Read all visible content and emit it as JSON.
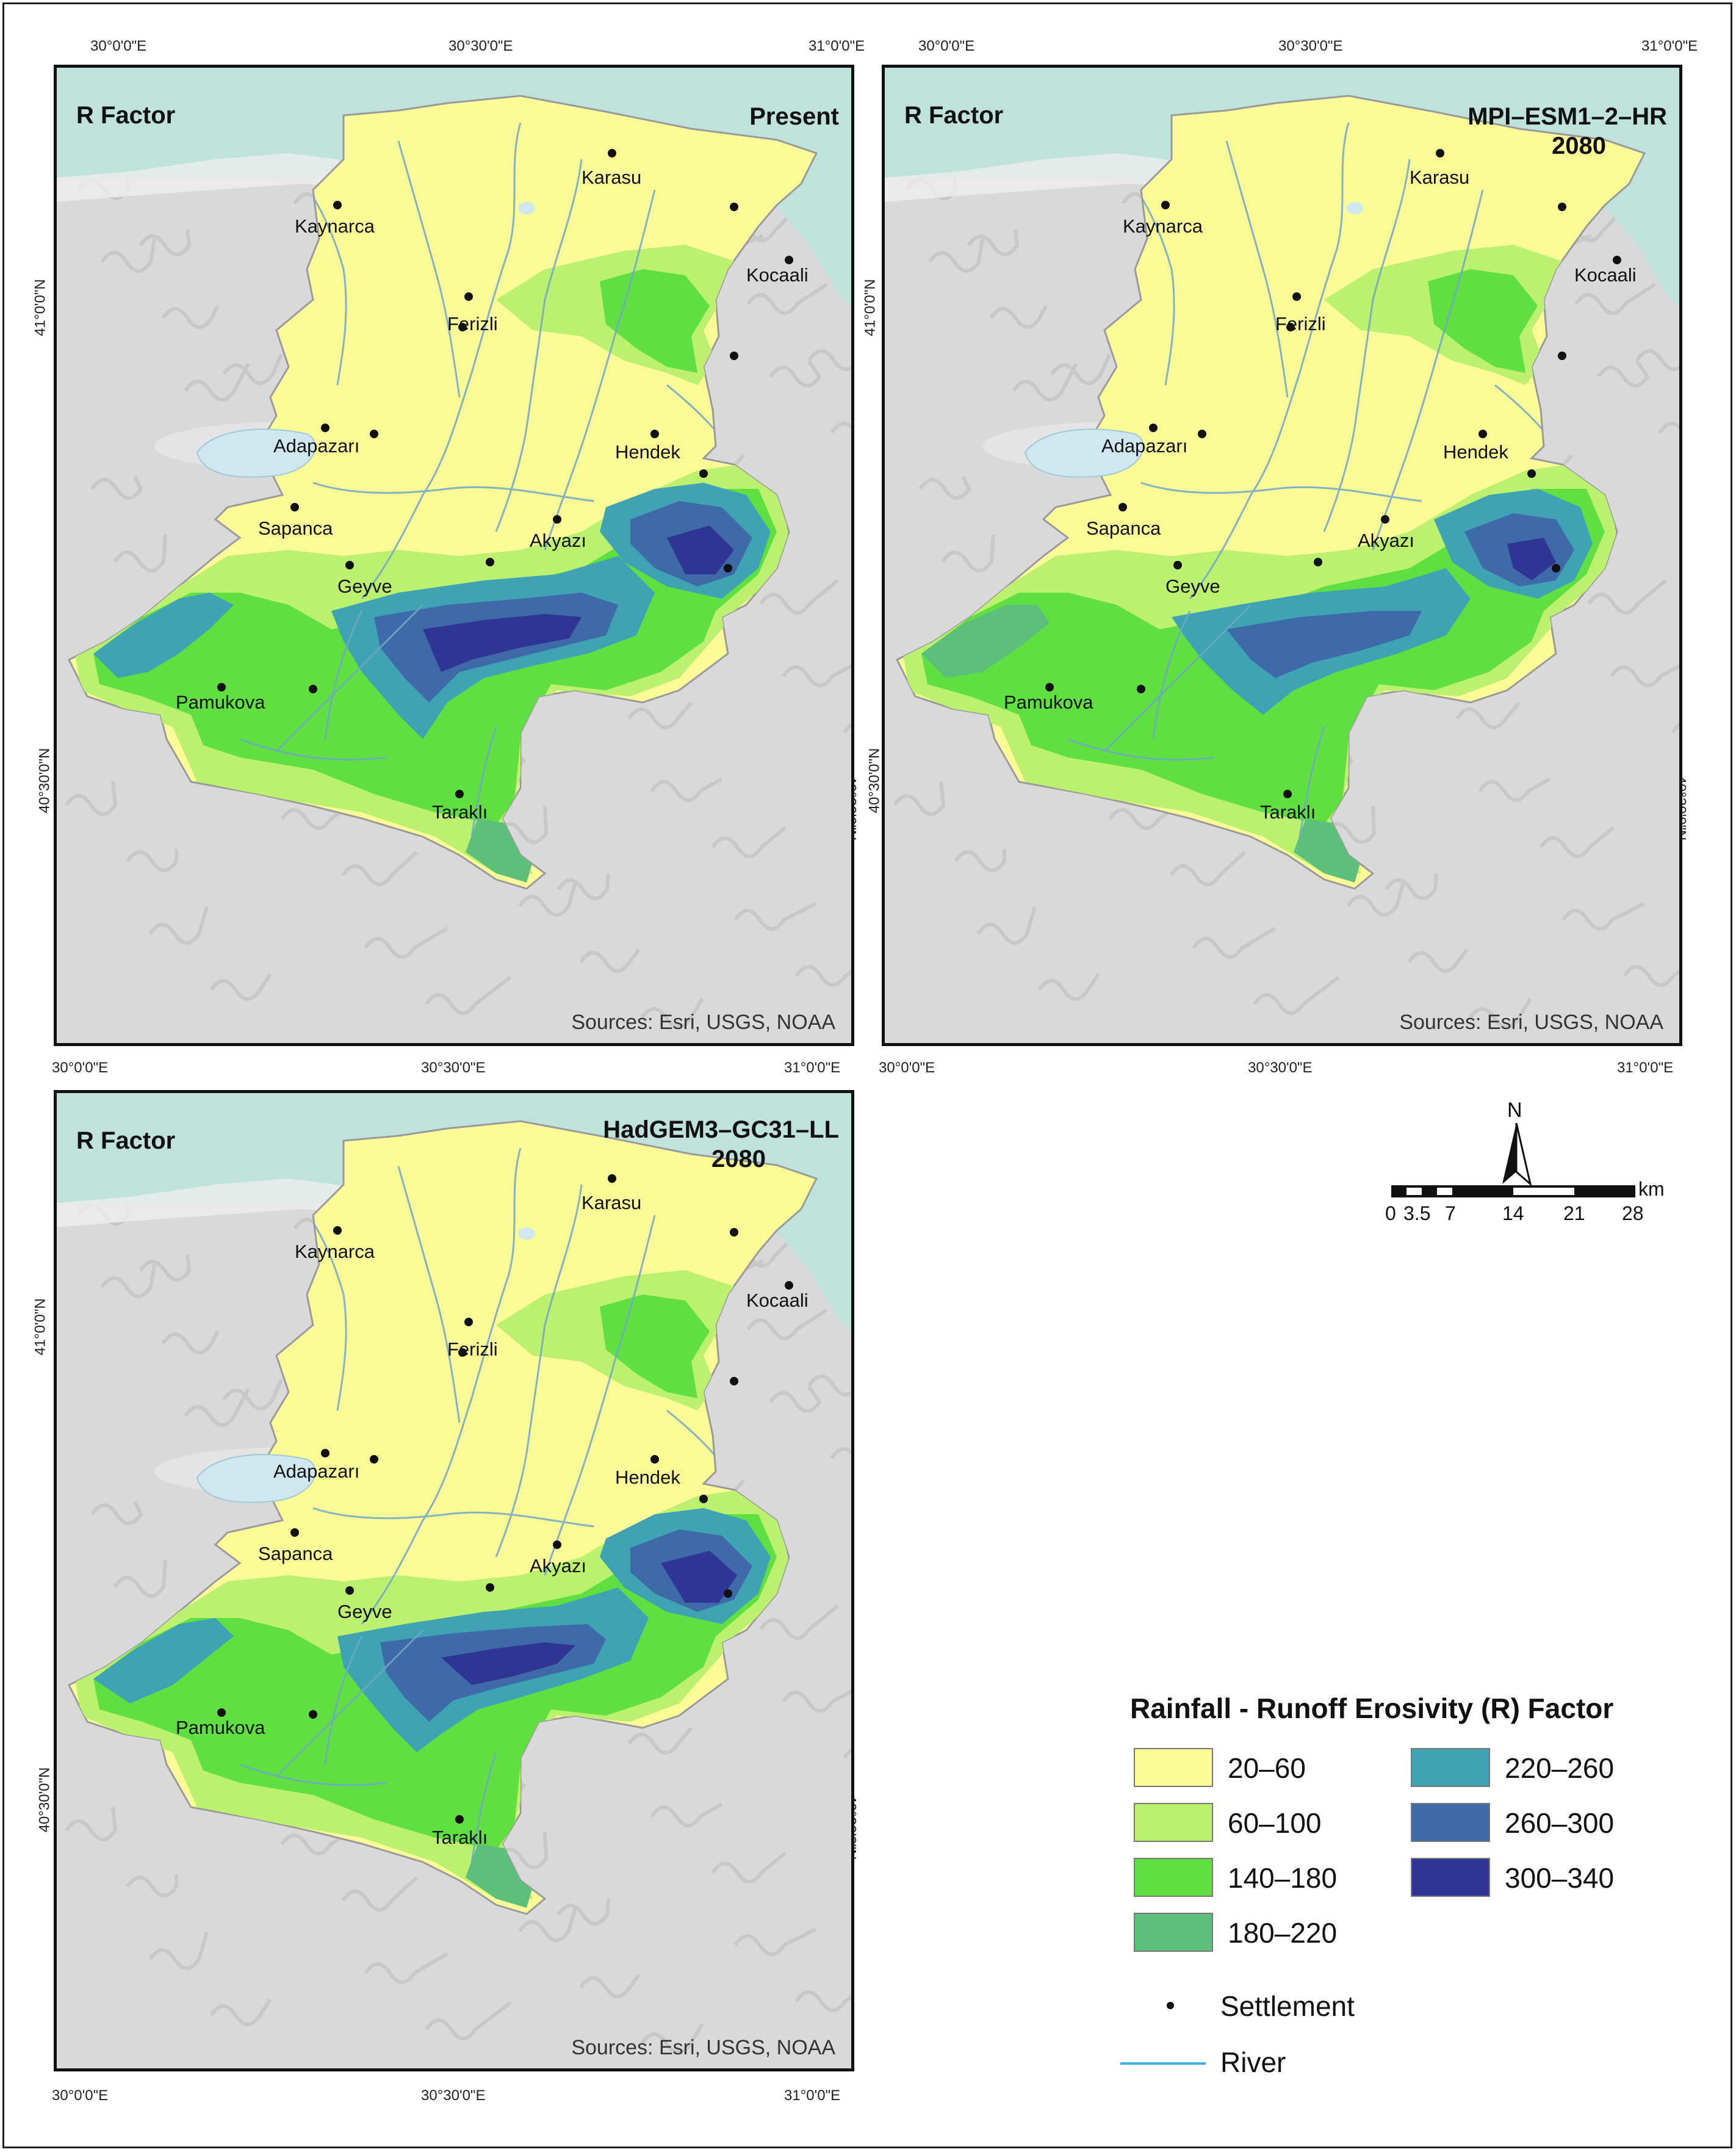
{
  "panels": [
    {
      "id": "present",
      "label": "R Factor",
      "scenario_line1": "Present",
      "scenario_line2": "",
      "source": "Sources: Esri, USGS, NOAA"
    },
    {
      "id": "mpi",
      "label": "R Factor",
      "scenario_line1": "MPI–ESM1–2–HR",
      "scenario_line2": "2080",
      "source": "Sources: Esri, USGS, NOAA"
    },
    {
      "id": "hadgem",
      "label": "R Factor",
      "scenario_line1": "HadGEM3–GC31–LL",
      "scenario_line2": "2080",
      "source": "Sources: Esri, USGS, NOAA"
    }
  ],
  "coordinates": {
    "lon": [
      "30°0'0\"E",
      "30°30'0\"E",
      "31°0'0\"E"
    ],
    "lat": [
      "41°0'0\"N",
      "40°30'0\"N"
    ]
  },
  "settlements": [
    "Karasu",
    "Kaynarca",
    "Kocaali",
    "Ferizli",
    "Adapazarı",
    "Hendek",
    "Sapanca",
    "Akyazı",
    "Geyve",
    "Pamukova",
    "Taraklı"
  ],
  "legend": {
    "title": "Rainfall - Runoff Erosivity (R) Factor",
    "classes": [
      {
        "label": "20–60",
        "color": "#fafb97"
      },
      {
        "label": "60–100",
        "color": "#bcf06f"
      },
      {
        "label": "140–180",
        "color": "#5fe040"
      },
      {
        "label": "180–220",
        "color": "#5dbf7c"
      },
      {
        "label": "220–260",
        "color": "#3fa3b4"
      },
      {
        "label": "260–300",
        "color": "#3f6aa8"
      },
      {
        "label": "300–340",
        "color": "#2f3593"
      }
    ],
    "settlement_label": "Settlement",
    "river_label": "River",
    "river_color": "#3fb0e6"
  },
  "north_label": "N",
  "scale": {
    "labels": [
      "0",
      "3.5",
      "7",
      "14",
      "21",
      "28"
    ],
    "unit": "km"
  },
  "colors": {
    "sea": "#bfe3da",
    "hillshade": "#d9d9d9",
    "lake": "#cfe8ef"
  }
}
